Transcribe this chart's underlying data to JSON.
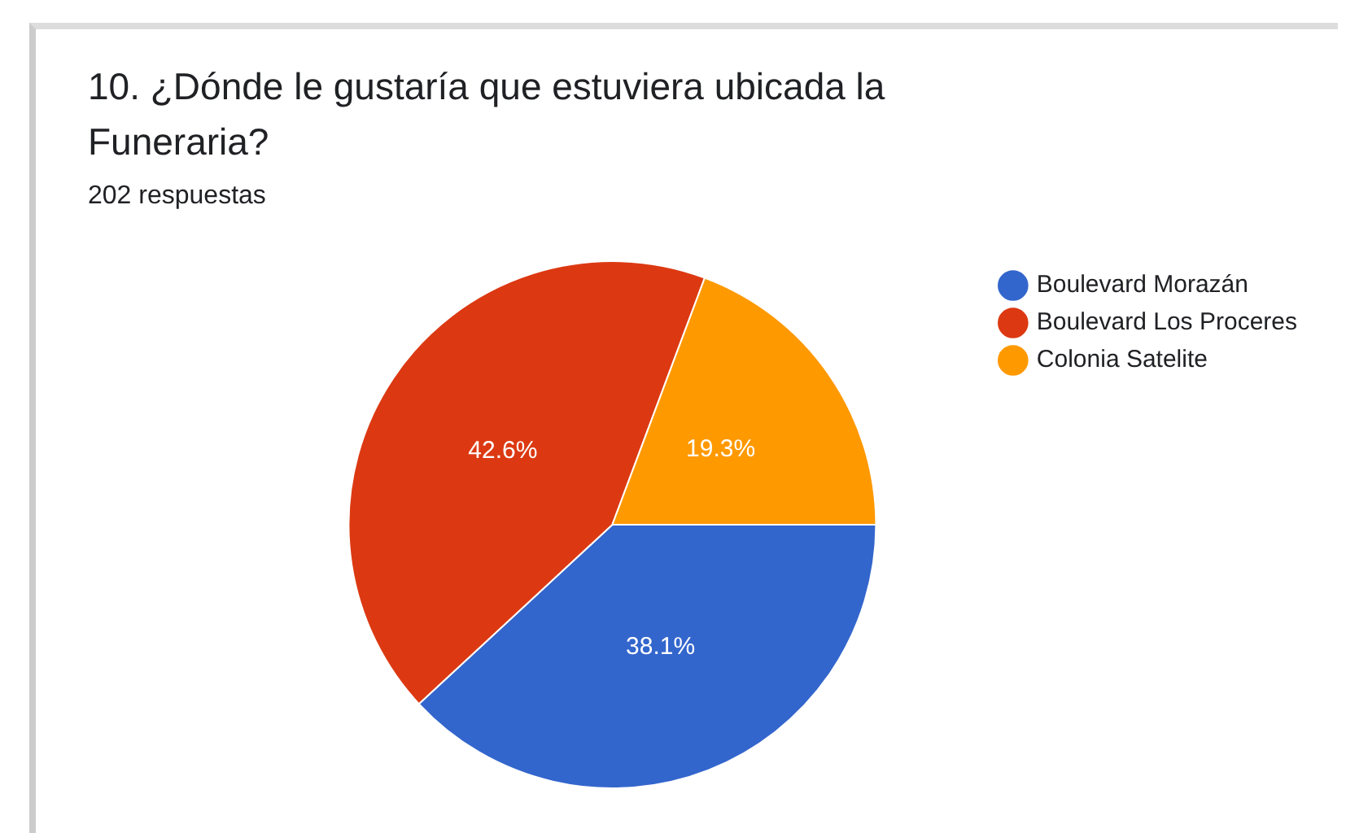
{
  "chart_data": {
    "type": "pie",
    "title": "10. ¿Dónde le gustaría que estuviera ubicada la Funeraria?",
    "subtitle": "202 respuestas",
    "categories": [
      "Boulevard Morazán",
      "Boulevard Los Proceres",
      "Colonia Satelite"
    ],
    "values": [
      38.1,
      42.6,
      19.3
    ],
    "colors": [
      "#3366cc",
      "#dc3912",
      "#ff9900"
    ],
    "value_labels": [
      "38.1%",
      "42.6%",
      "19.3%"
    ],
    "legend": "top right"
  }
}
